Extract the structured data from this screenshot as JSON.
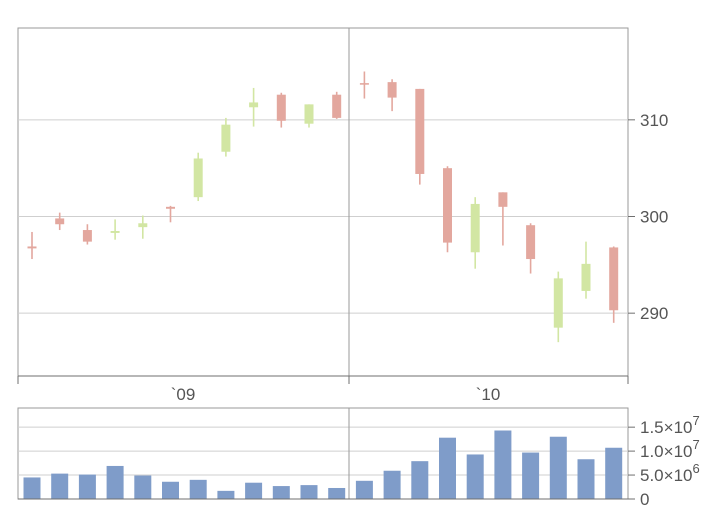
{
  "chart_data": [
    {
      "type": "candlestick",
      "colors": {
        "up": "#d2e6a3",
        "down": "#e3a79e"
      },
      "x_ticks": [
        "`09",
        "`10"
      ],
      "y_ticks": [
        "310",
        "300",
        "290"
      ],
      "ylim": [
        283.5,
        319.5
      ],
      "grid": true,
      "candles": [
        {
          "open": 296.9,
          "close": 296.7,
          "high": 298.4,
          "low": 295.6
        },
        {
          "open": 299.8,
          "close": 299.2,
          "high": 300.4,
          "low": 298.6
        },
        {
          "open": 298.6,
          "close": 297.4,
          "high": 299.2,
          "low": 297.1
        },
        {
          "open": 298.3,
          "close": 298.5,
          "high": 299.7,
          "low": 297.6
        },
        {
          "open": 298.9,
          "close": 299.3,
          "high": 300.1,
          "low": 297.7
        },
        {
          "open": 301.0,
          "close": 300.8,
          "high": 301.1,
          "low": 299.4
        },
        {
          "open": 302.0,
          "close": 306.0,
          "high": 306.6,
          "low": 301.6
        },
        {
          "open": 306.7,
          "close": 309.5,
          "high": 310.2,
          "low": 306.2
        },
        {
          "open": 311.3,
          "close": 311.8,
          "high": 313.3,
          "low": 309.3
        },
        {
          "open": 312.6,
          "close": 309.9,
          "high": 312.8,
          "low": 309.2
        },
        {
          "open": 309.6,
          "close": 311.6,
          "high": 311.6,
          "low": 309.2
        },
        {
          "open": 312.6,
          "close": 310.2,
          "high": 312.9,
          "low": 310.1
        },
        {
          "open": 313.8,
          "close": 313.7,
          "high": 315.0,
          "low": 312.2
        },
        {
          "open": 313.9,
          "close": 312.3,
          "high": 314.2,
          "low": 310.9
        },
        {
          "open": 313.2,
          "close": 304.4,
          "high": 313.2,
          "low": 303.3
        },
        {
          "open": 305.0,
          "close": 297.3,
          "high": 305.2,
          "low": 296.3
        },
        {
          "open": 296.3,
          "close": 301.3,
          "high": 302.0,
          "low": 294.6
        },
        {
          "open": 302.5,
          "close": 301.0,
          "high": 302.5,
          "low": 297.0
        },
        {
          "open": 299.1,
          "close": 295.6,
          "high": 299.3,
          "low": 294.1
        },
        {
          "open": 288.5,
          "close": 293.6,
          "high": 294.3,
          "low": 287.0
        },
        {
          "open": 292.3,
          "close": 295.1,
          "high": 297.4,
          "low": 291.5
        },
        {
          "open": 296.8,
          "close": 290.3,
          "high": 296.9,
          "low": 289.0
        }
      ]
    },
    {
      "type": "bar",
      "color": "#7f9cc9",
      "y_ticks": [
        {
          "mantissa": "1.5",
          "exponent": "7"
        },
        {
          "mantissa": "1.0",
          "exponent": "7"
        },
        {
          "mantissa": "5.0",
          "exponent": "6"
        },
        {
          "mantissa": "0",
          "exponent": ""
        }
      ],
      "ylim": [
        0,
        19000000
      ],
      "values": [
        4500000,
        5300000,
        5100000,
        6900000,
        4900000,
        3600000,
        4000000,
        1700000,
        3400000,
        2700000,
        2900000,
        2300000,
        3800000,
        5900000,
        7900000,
        12800000,
        9300000,
        14300000,
        9700000,
        13000000,
        8300000,
        10700000
      ]
    }
  ]
}
